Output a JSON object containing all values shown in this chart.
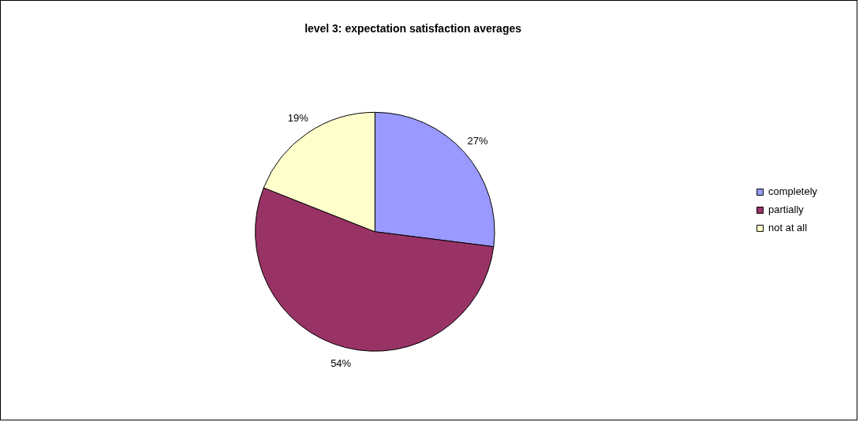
{
  "chart_data": {
    "type": "pie",
    "title": "level 3: expectation satisfaction averages",
    "categories": [
      "completely",
      "partially",
      "not at all"
    ],
    "values": [
      27,
      54,
      19
    ],
    "colors": [
      "#9999ff",
      "#993366",
      "#ffffcc"
    ],
    "value_labels": [
      "27%",
      "54%",
      "19%"
    ],
    "legend": "right"
  }
}
